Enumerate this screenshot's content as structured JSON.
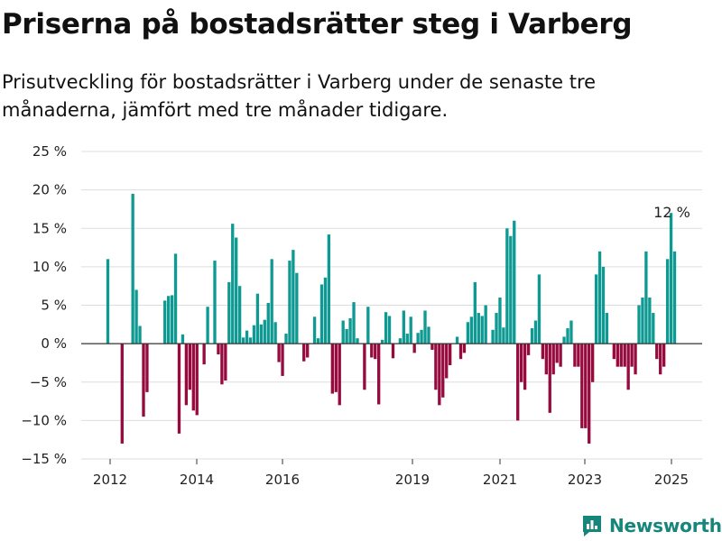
{
  "title": "Priserna på bostadsrätter steg i Varberg",
  "subtitle": "Prisutveckling för bostadsrätter i Varberg under de senaste tre månaderna, jämfört med tre månader tidigare.",
  "brand": {
    "name": "Newsworthy",
    "icon": "newsworthy-logo-icon",
    "color": "#16857a"
  },
  "colors": {
    "positive": "#0e9a92",
    "negative": "#960a3d",
    "grid": "#dddddd",
    "zero_line": "#333333"
  },
  "chart_data": {
    "type": "bar",
    "xlabel": "",
    "ylabel": "",
    "ylim": [
      -15,
      25
    ],
    "y_ticks": [
      25,
      20,
      15,
      10,
      5,
      0,
      -5,
      -10,
      -15
    ],
    "y_tick_labels": [
      "25 %",
      "20 %",
      "15 %",
      "10 %",
      "5 %",
      "0 %",
      "−5 %",
      "−10 %",
      "−15 %"
    ],
    "x_tick_labels": [
      "2012",
      "2014",
      "2016",
      "2019",
      "2021",
      "2023",
      "2025"
    ],
    "grid": true,
    "annotation": {
      "text": "12 %",
      "value": 12
    },
    "series": [
      {
        "values": [
          11,
          0,
          0,
          0,
          -13,
          0,
          0,
          19.5,
          7,
          2.3,
          -9.5,
          -6.3,
          0,
          0,
          0,
          0,
          5.6,
          6.2,
          6.3,
          11.7,
          -11.7,
          1.2,
          -8,
          -6,
          -8.7,
          -9.3,
          0,
          -2.7,
          4.8,
          0,
          10.8,
          -1.4,
          -5.3,
          -4.8,
          8,
          15.6,
          13.8,
          7.5,
          0.8,
          1.7,
          0.8,
          2.4,
          6.5,
          2.5,
          3.1,
          5.3,
          11,
          2.8,
          -2.4,
          -4.2,
          1.3,
          10.8,
          12.2,
          9.2,
          0,
          -2.3,
          -1.8,
          0,
          3.5,
          0.7,
          7.7,
          8.6,
          14.2,
          -6.5,
          -6.3,
          -8,
          3,
          1.9,
          3.3,
          5.4,
          0.7,
          0,
          -6,
          4.8,
          -1.8,
          -2,
          -7.9,
          0.5,
          4.1,
          3.6,
          -1.9,
          0,
          0.7,
          4.3,
          1.3,
          3.5,
          -1.2,
          1.4,
          1.8,
          4.3,
          2.2,
          -0.8,
          -6,
          -8,
          -7,
          -4.5,
          -2.8,
          0,
          0.9,
          -2,
          -1.2,
          2.8,
          3.5,
          8,
          4,
          3.6,
          5,
          0,
          1.8,
          4,
          6,
          2.1,
          15,
          14,
          16,
          -10,
          -5,
          -6,
          -1.5,
          2,
          3,
          9,
          -2,
          -4,
          -9,
          -4,
          -2.5,
          -3,
          0.9,
          2,
          3,
          -3,
          -3,
          -11,
          -11,
          -13,
          -5,
          9,
          12,
          10,
          4,
          0,
          -2,
          -3,
          -3,
          -3,
          -6,
          -3,
          -4,
          5,
          6,
          12,
          6,
          4,
          -2,
          -4,
          -3,
          11,
          17,
          12
        ]
      }
    ]
  }
}
